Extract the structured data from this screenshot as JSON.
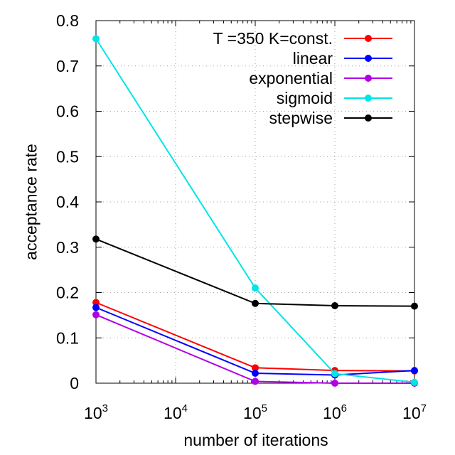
{
  "chart_data": {
    "type": "line",
    "xlabel": "number of iterations",
    "ylabel": "acceptance rate",
    "x_scale": "log10",
    "x": [
      1000,
      100000,
      1000000,
      10000000
    ],
    "xlim": [
      1000,
      10000000
    ],
    "x_ticks": [
      {
        "base": "10",
        "exp": "3",
        "value": 1000
      },
      {
        "base": "10",
        "exp": "4",
        "value": 10000
      },
      {
        "base": "10",
        "exp": "5",
        "value": 100000
      },
      {
        "base": "10",
        "exp": "6",
        "value": 1000000
      },
      {
        "base": "10",
        "exp": "7",
        "value": 10000000
      }
    ],
    "ylim": [
      0,
      0.8
    ],
    "y_ticks": [
      "0",
      "0.1",
      "0.2",
      "0.3",
      "0.4",
      "0.5",
      "0.6",
      "0.7",
      "0.8"
    ],
    "grid": true,
    "legend_position": "top-right",
    "series": [
      {
        "name": "T =350 K=const.",
        "color": "#ff0000",
        "values": [
          0.178,
          0.034,
          0.028,
          0.027
        ]
      },
      {
        "name": "linear",
        "color": "#0000ff",
        "values": [
          0.167,
          0.022,
          0.018,
          0.028
        ]
      },
      {
        "name": "exponential",
        "color": "#b000e6",
        "values": [
          0.151,
          0.004,
          0.0,
          0.0
        ]
      },
      {
        "name": "sigmoid",
        "color": "#00e5e5",
        "values": [
          0.76,
          0.21,
          0.021,
          0.002
        ]
      },
      {
        "name": "stepwise",
        "color": "#000000",
        "values": [
          0.318,
          0.176,
          0.171,
          0.17
        ]
      }
    ]
  }
}
